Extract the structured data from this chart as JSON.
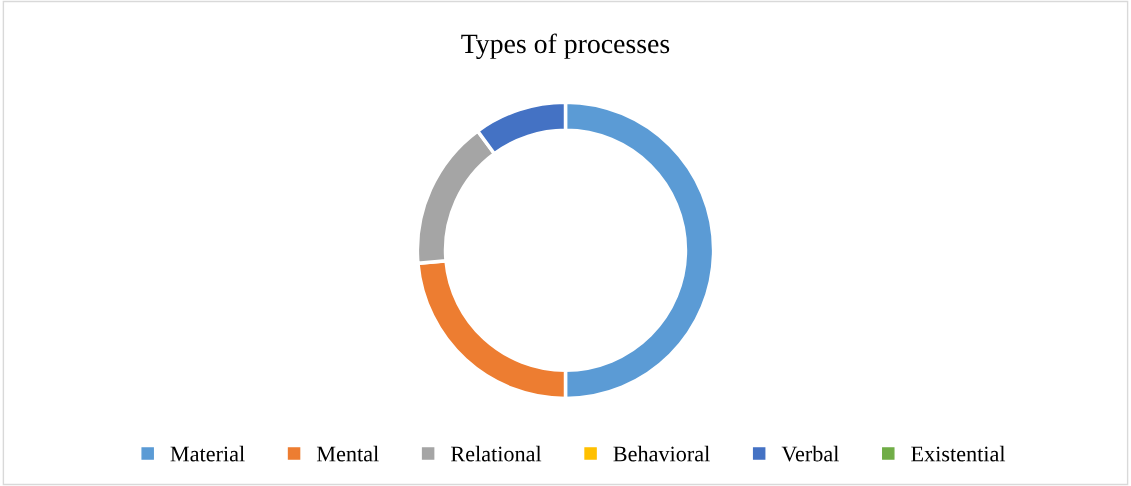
{
  "chart_data": {
    "type": "donut",
    "title": "Types of processes",
    "categories": [
      "Material",
      "Mental",
      "Relational",
      "Behavioral",
      "Verbal",
      "Existential"
    ],
    "values": [
      50,
      23.6,
      16.3,
      0,
      10.1,
      0
    ],
    "colors": [
      "#5b9bd5",
      "#ed7d31",
      "#a5a5a5",
      "#ffc000",
      "#4472c4",
      "#70ad47"
    ],
    "legend": "bottom"
  }
}
